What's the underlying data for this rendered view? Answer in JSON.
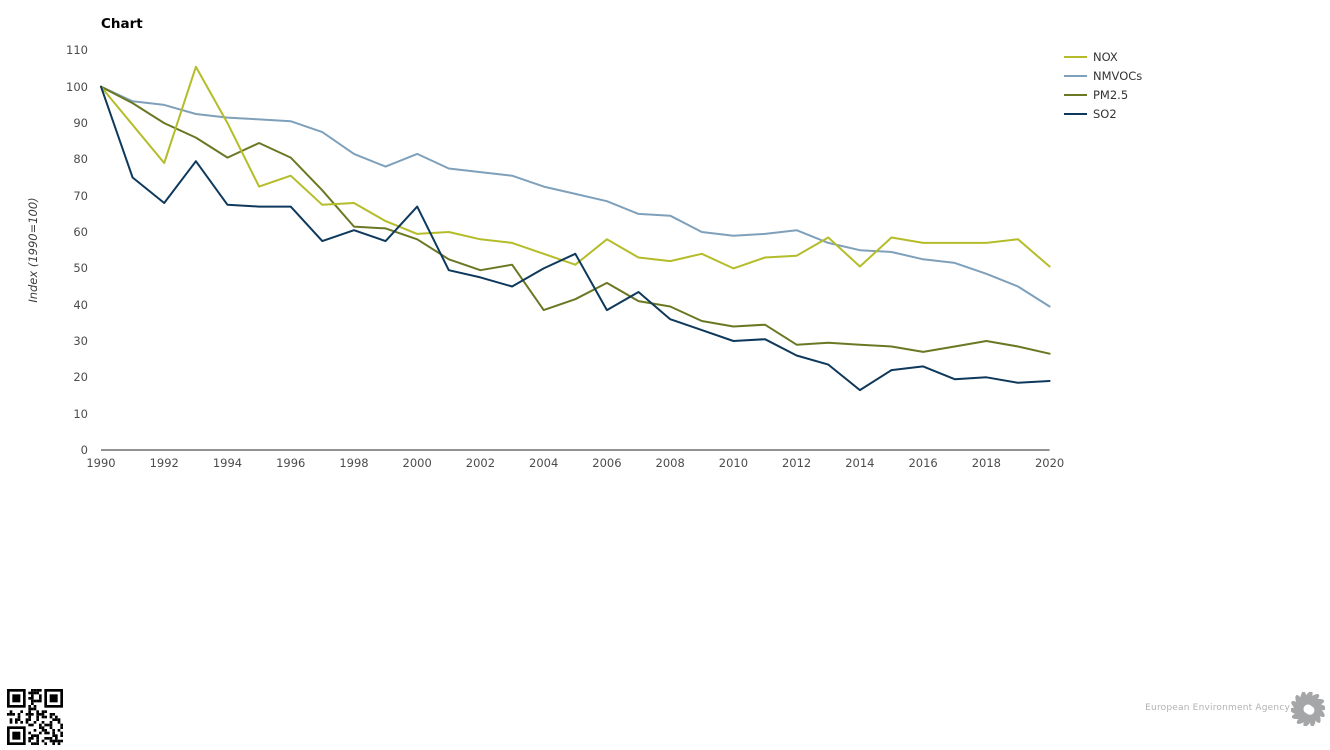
{
  "page": {
    "footer": {
      "brand": "European Environment Agency"
    }
  },
  "chart_data": {
    "type": "line",
    "title": "Chart",
    "xlabel": "",
    "ylabel": "Index (1990=100)",
    "xlim": [
      1990,
      2020
    ],
    "ylim": [
      0,
      110
    ],
    "grid": false,
    "legend_position": "top-right",
    "y_ticks": [
      0,
      10,
      20,
      30,
      40,
      50,
      60,
      70,
      80,
      90,
      100,
      110
    ],
    "x_tick_labels": [
      "1990",
      "1992",
      "1994",
      "1996",
      "1998",
      "2000",
      "2002",
      "2004",
      "2006",
      "2008",
      "2010",
      "2012",
      "2014",
      "2016",
      "2018",
      "2020"
    ],
    "x": [
      1990,
      1991,
      1992,
      1993,
      1994,
      1995,
      1996,
      1997,
      1998,
      1999,
      2000,
      2001,
      2002,
      2003,
      2004,
      2005,
      2006,
      2007,
      2008,
      2009,
      2010,
      2011,
      2012,
      2013,
      2014,
      2015,
      2016,
      2017,
      2018,
      2019,
      2020
    ],
    "series": [
      {
        "name": "NOX",
        "color": "#b4bd29",
        "values": [
          100,
          89.5,
          79,
          105.5,
          90,
          72.5,
          75.5,
          67.5,
          68,
          63,
          59.5,
          60,
          58,
          57,
          54,
          51,
          58,
          53,
          52,
          54,
          50,
          53,
          53.5,
          58.5,
          50.5,
          58.5,
          57,
          57,
          57,
          58,
          50.5
        ]
      },
      {
        "name": "NMVOCs",
        "color": "#7fa0ba",
        "values": [
          100,
          96,
          95,
          92.5,
          91.5,
          91,
          90.5,
          87.5,
          81.5,
          78,
          81.5,
          77.5,
          76.5,
          75.5,
          72.5,
          70.5,
          68.5,
          65,
          64.5,
          60,
          59,
          59.5,
          60.5,
          57,
          55,
          54.5,
          52.5,
          51.5,
          48.5,
          45,
          39.5
        ]
      },
      {
        "name": "PM2.5",
        "color": "#6b7823",
        "values": [
          100,
          95.5,
          90,
          86,
          80.5,
          84.5,
          80.5,
          71.5,
          61.5,
          61,
          58,
          52.5,
          49.5,
          51,
          38.5,
          41.5,
          46,
          41,
          39.5,
          35.5,
          34,
          34.5,
          29,
          29.5,
          29,
          28.5,
          27,
          28.5,
          30,
          28.5,
          26.5
        ]
      },
      {
        "name": "SO2",
        "color": "#0e395c",
        "values": [
          100,
          75,
          68,
          79.5,
          67.5,
          67,
          67,
          57.5,
          60.5,
          57.5,
          67,
          49.5,
          47.5,
          45,
          50,
          54,
          38.5,
          43.5,
          36,
          33,
          30,
          30.5,
          26,
          23.5,
          16.5,
          22,
          23,
          19.5,
          20,
          18.5,
          19
        ]
      }
    ],
    "draw_order": [
      1,
      2,
      0,
      3
    ]
  }
}
